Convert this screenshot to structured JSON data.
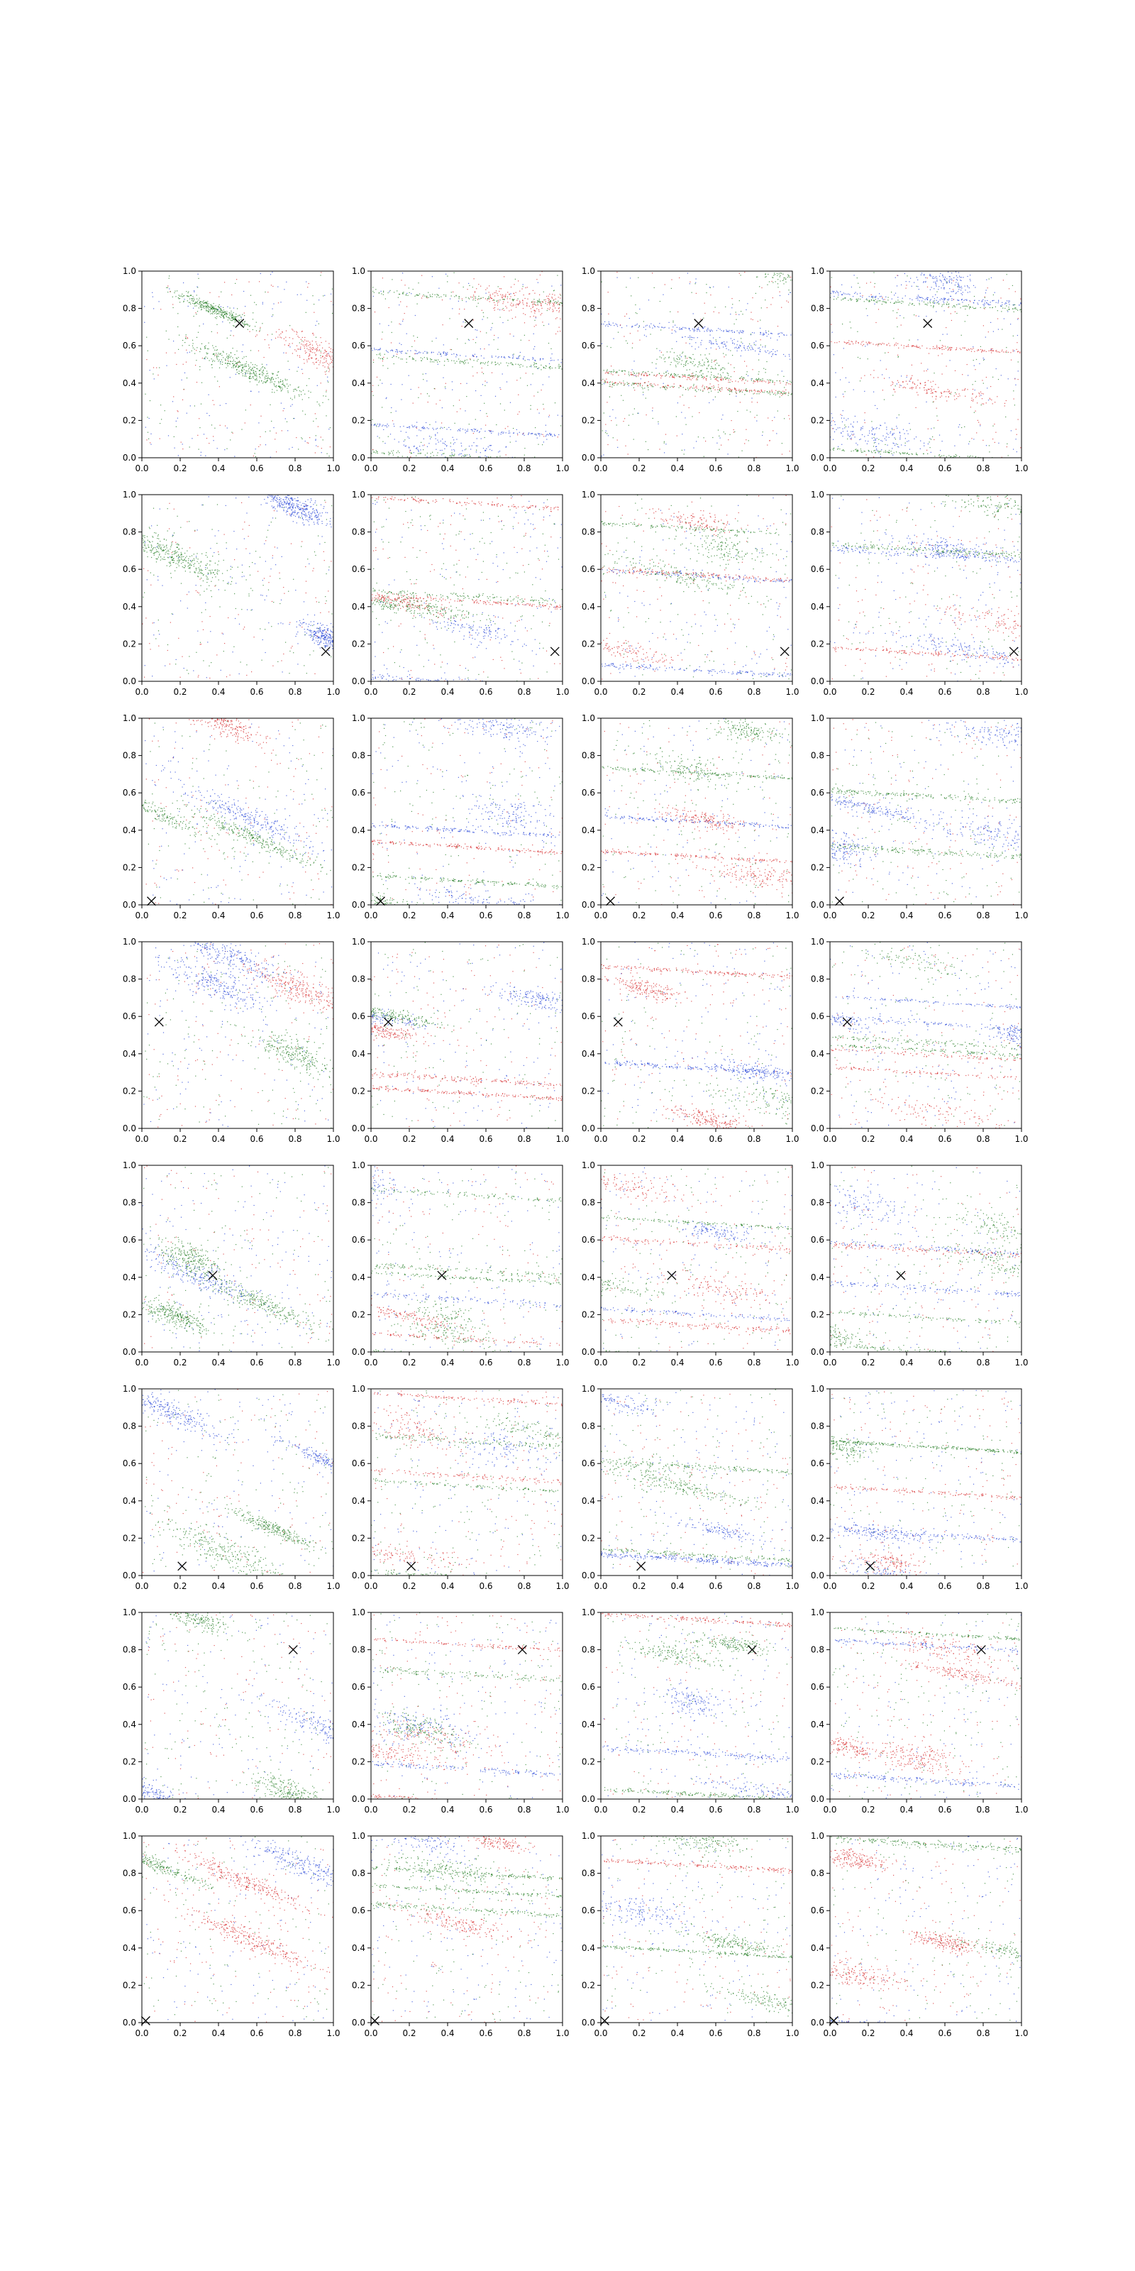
{
  "figure": {
    "rows": 8,
    "cols": 4
  },
  "colors": {
    "red": "#d62728",
    "green": "#1f7a1f",
    "blue": "#1f3fd6",
    "marker": "#000000"
  },
  "chart_data": {
    "type": "scatter",
    "title": "",
    "xlabel": "",
    "ylabel": "",
    "xlim": [
      0,
      1
    ],
    "ylim": [
      0,
      1
    ],
    "xticks": [
      "0.0",
      "0.2",
      "0.4",
      "0.6",
      "0.8",
      "1.0"
    ],
    "yticks": [
      "0.0",
      "0.2",
      "0.4",
      "0.6",
      "0.8",
      "1.0"
    ],
    "grid": false,
    "legend": "none",
    "series_colors": [
      "red",
      "green",
      "blue"
    ],
    "row_markers": [
      {
        "x": 0.51,
        "y": 0.72
      },
      {
        "x": 0.96,
        "y": 0.16
      },
      {
        "x": 0.05,
        "y": 0.02
      },
      {
        "x": 0.09,
        "y": 0.57
      },
      {
        "x": 0.37,
        "y": 0.41
      },
      {
        "x": 0.21,
        "y": 0.05
      },
      {
        "x": 0.79,
        "y": 0.8
      },
      {
        "x": 0.02,
        "y": 0.01
      }
    ]
  }
}
